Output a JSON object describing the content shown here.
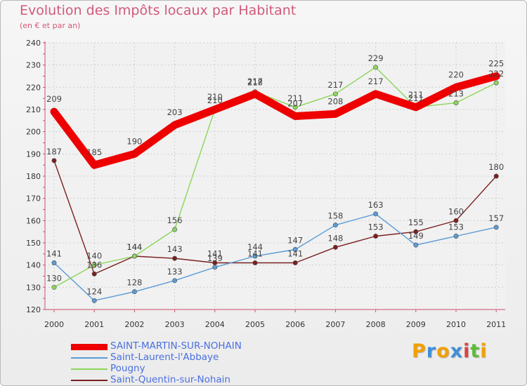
{
  "chart_data": {
    "type": "line",
    "title": "Evolution des Impôts locaux par Habitant",
    "subtitle": "(en € et par an)",
    "x": [
      "2000",
      "2001",
      "2002",
      "2003",
      "2004",
      "2005",
      "2006",
      "2007",
      "2008",
      "2009",
      "2010",
      "2011"
    ],
    "ylim": [
      120,
      240
    ],
    "yticks": [
      "120",
      "130",
      "140",
      "150",
      "160",
      "170",
      "180",
      "190",
      "200",
      "210",
      "220",
      "230",
      "240"
    ],
    "grid": true,
    "series": [
      {
        "name": "SAINT-MARTIN-SUR-NOHAIN",
        "color": "#ee0000",
        "values": [
          209,
          185,
          190,
          203,
          210,
          217,
          207,
          208,
          217,
          211,
          220,
          225
        ],
        "labels": [
          "209",
          "185",
          "190",
          "203",
          "210",
          "217",
          "207",
          "208",
          "217",
          "211",
          "220",
          "225"
        ]
      },
      {
        "name": "Saint-Laurent-l'Abbaye",
        "color": "#5b9bd5",
        "values": [
          141,
          124,
          128,
          133,
          139,
          144,
          147,
          158,
          163,
          149,
          153,
          157
        ],
        "labels": [
          "141",
          "124",
          "128",
          "133",
          "139",
          "144",
          "147",
          "158",
          "163",
          "149",
          "153",
          "157"
        ]
      },
      {
        "name": "Pougny",
        "color": "#8bd65a",
        "values": [
          130,
          140,
          144,
          156,
          210,
          218,
          211,
          217,
          229,
          211,
          213,
          222
        ],
        "labels": [
          "130",
          "140",
          "144",
          "156",
          "210",
          "218",
          "211",
          "217",
          "229",
          "211",
          "213",
          "222"
        ]
      },
      {
        "name": "Saint-Quentin-sur-Nohain",
        "color": "#7a1f1f",
        "values": [
          187,
          136,
          144,
          143,
          141,
          141,
          141,
          148,
          153,
          155,
          160,
          180
        ],
        "labels": [
          "187",
          "136",
          "144",
          "143",
          "141",
          "141",
          "141",
          "148",
          "153",
          "155",
          "160",
          "180"
        ]
      }
    ]
  },
  "logo": {
    "letters": [
      "P",
      "r",
      "o",
      "x",
      "i",
      "t",
      "i"
    ],
    "colors": [
      "#f2a000",
      "#3f8fd8",
      "#f2a000",
      "#3f8fd8",
      "#e04040",
      "#5dbb3a",
      "#f2a000"
    ]
  }
}
